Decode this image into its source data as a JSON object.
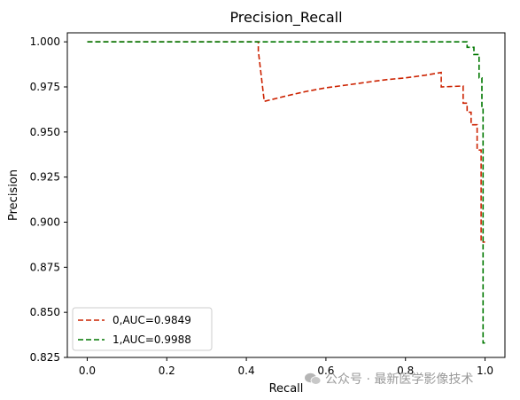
{
  "chart_data": {
    "type": "line",
    "title": "Precision_Recall",
    "xlabel": "Recall",
    "ylabel": "Precision",
    "xlim": [
      -0.05,
      1.05
    ],
    "ylim": [
      0.825,
      1.005
    ],
    "xticks": [
      "0.0",
      "0.2",
      "0.4",
      "0.6",
      "0.8",
      "1.0"
    ],
    "yticks": [
      "0.825",
      "0.850",
      "0.875",
      "0.900",
      "0.925",
      "0.950",
      "0.975",
      "1.000"
    ],
    "grid": false,
    "legend_position": "lower left",
    "series": [
      {
        "name": "0,AUC=0.9849",
        "color": "#cc2200",
        "style": "dashed",
        "x": [
          0.0,
          0.43,
          0.43,
          0.445,
          0.445,
          0.5,
          0.55,
          0.6,
          0.65,
          0.7,
          0.75,
          0.8,
          0.85,
          0.89,
          0.89,
          0.945,
          0.945,
          0.955,
          0.955,
          0.965,
          0.965,
          0.98,
          0.98,
          0.99,
          0.99,
          1.0
        ],
        "y": [
          1.0,
          1.0,
          0.995,
          0.967,
          0.967,
          0.97,
          0.9725,
          0.9745,
          0.976,
          0.9775,
          0.979,
          0.98,
          0.9815,
          0.983,
          0.975,
          0.9755,
          0.966,
          0.966,
          0.961,
          0.961,
          0.954,
          0.954,
          0.94,
          0.94,
          0.889,
          0.889
        ]
      },
      {
        "name": "1,AUC=0.9988",
        "color": "#007700",
        "style": "dashed",
        "x": [
          0.0,
          0.955,
          0.955,
          0.972,
          0.972,
          0.985,
          0.985,
          0.992,
          0.992,
          0.995,
          0.995,
          1.0
        ],
        "y": [
          1.0,
          1.0,
          0.997,
          0.997,
          0.993,
          0.993,
          0.98,
          0.98,
          0.963,
          0.963,
          0.833,
          0.833
        ]
      }
    ]
  },
  "watermark": {
    "text": "公众号 · 最新医学影像技术"
  }
}
